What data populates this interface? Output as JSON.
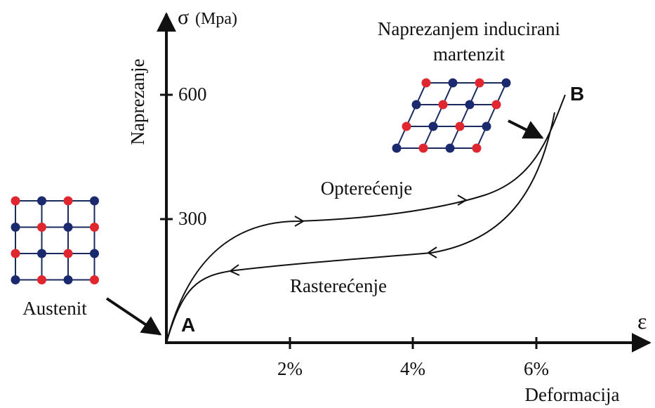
{
  "axes": {
    "y_symbol": "σ",
    "y_unit": "(Mpa)",
    "y_title": "Naprezanje",
    "y_ticks": [
      "600",
      "300"
    ],
    "x_symbol": "ε",
    "x_title": "Deformacija",
    "x_ticks": [
      "2%",
      "4%",
      "6%"
    ]
  },
  "curves": {
    "loading": "Opterećenje",
    "unloading": "Rasterećenje"
  },
  "points": {
    "start": "A",
    "end": "B"
  },
  "structures": {
    "austenite": "Austenit",
    "martensite_line1": "Naprezanjem inducirani",
    "martensite_line2": "martenzit"
  }
}
